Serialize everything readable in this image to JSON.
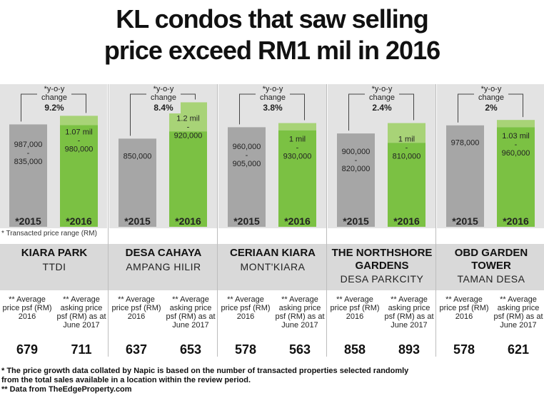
{
  "title_line1": "KL condos that saw selling",
  "title_line2": "price exceed RM1 mil in 2016",
  "note": "* Transacted price range (RM)",
  "colors": {
    "bar_2015": "#a6a6a6",
    "bar_2016": "#7bc143",
    "bar_2016_top": "#a8d377",
    "panel": "#e3e3e3",
    "band": "#d9d9d9"
  },
  "chart_data": {
    "type": "bar",
    "categories": [
      "KIARA PARK",
      "DESA CAHAYA",
      "CERIAAN KIARA",
      "THE NORTHSHORE GARDENS",
      "OBD GARDEN TOWER"
    ],
    "series_labels": [
      "*2015",
      "*2016"
    ],
    "yoy_label": "*y-o-y change",
    "ylim": [
      0,
      1100000
    ],
    "panels": [
      {
        "name": "KIARA PARK",
        "area": "TTDI",
        "yoy": "9.2%",
        "r2015": {
          "high": 987000,
          "low": 835000,
          "text": [
            "987,000",
            "-",
            "835,000"
          ]
        },
        "r2016": {
          "high": 1070000,
          "low": 980000,
          "text": [
            "1.07 mil",
            "-",
            "980,000"
          ]
        },
        "avg_2016": "679",
        "ask_2017": "711"
      },
      {
        "name": "DESA CAHAYA",
        "area": "AMPANG HILIR",
        "yoy": "8.4%",
        "r2015": {
          "high": 850000,
          "low": 850000,
          "text": [
            "850,000"
          ]
        },
        "r2016": {
          "high": 1200000,
          "low": 920000,
          "text": [
            "1.2 mil",
            "-",
            "920,000"
          ]
        },
        "avg_2016": "637",
        "ask_2017": "653"
      },
      {
        "name": "CERIAAN KIARA",
        "area": "MONT'KIARA",
        "yoy": "3.8%",
        "r2015": {
          "high": 960000,
          "low": 905000,
          "text": [
            "960,000",
            "-",
            "905,000"
          ]
        },
        "r2016": {
          "high": 1000000,
          "low": 930000,
          "text": [
            "1 mil",
            "-",
            "930,000"
          ]
        },
        "avg_2016": "578",
        "ask_2017": "563"
      },
      {
        "name": "THE NORTHSHORE GARDENS",
        "area": "DESA PARKCITY",
        "yoy": "2.4%",
        "r2015": {
          "high": 900000,
          "low": 820000,
          "text": [
            "900,000",
            "-",
            "820,000"
          ]
        },
        "r2016": {
          "high": 1000000,
          "low": 810000,
          "text": [
            "1 mil",
            "-",
            "810,000"
          ]
        },
        "avg_2016": "858",
        "ask_2017": "893"
      },
      {
        "name": "OBD GARDEN TOWER",
        "area": "TAMAN DESA",
        "yoy": "2%",
        "r2015": {
          "high": 978000,
          "low": 978000,
          "text": [
            "978,000"
          ]
        },
        "r2016": {
          "high": 1030000,
          "low": 960000,
          "text": [
            "1.03 mil",
            "-",
            "960,000"
          ]
        },
        "avg_2016": "578",
        "ask_2017": "621"
      }
    ]
  },
  "labels": {
    "avg_label": "** Average price psf (RM) 2016",
    "ask_label": "** Average asking price psf (RM) as at June 2017"
  },
  "names": [
    {
      "line1": "KIARA PARK",
      "line2": "",
      "area": "TTDI"
    },
    {
      "line1": "DESA CAHAYA",
      "line2": "",
      "area": "AMPANG HILIR"
    },
    {
      "line1": "CERIAAN KIARA",
      "line2": "",
      "area": "MONT'KIARA"
    },
    {
      "line1": "THE NORTHSHORE",
      "line2": "GARDENS",
      "area": "DESA PARKCITY"
    },
    {
      "line1": "OBD GARDEN",
      "line2": "TOWER",
      "area": "TAMAN DESA"
    }
  ],
  "footnote1": "* The price growth data collated by Napic is based on the number of transacted properties selected randomly",
  "footnote2": "from the total sales available in a location within the review period.",
  "footnote3": "** Data from TheEdgeProperty.com"
}
